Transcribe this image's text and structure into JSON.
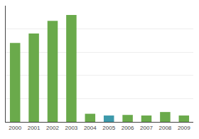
{
  "chart_data": {
    "type": "bar",
    "categories": [
      "2000",
      "2001",
      "2002",
      "2003",
      "2004",
      "2005",
      "2006",
      "2007",
      "2008",
      "2009"
    ],
    "values": [
      68,
      76,
      87,
      92,
      7,
      5.5,
      6,
      5.5,
      8.5,
      5.5
    ],
    "colors": [
      "#6aaa4b",
      "#6aaa4b",
      "#6aaa4b",
      "#6aaa4b",
      "#6aaa4b",
      "#3d9aab",
      "#6aaa4b",
      "#6aaa4b",
      "#6aaa4b",
      "#6aaa4b"
    ],
    "ylim": [
      0,
      100
    ],
    "yticks": [
      20,
      40,
      60,
      80,
      100
    ],
    "grid": true,
    "tick_labels": "x"
  }
}
